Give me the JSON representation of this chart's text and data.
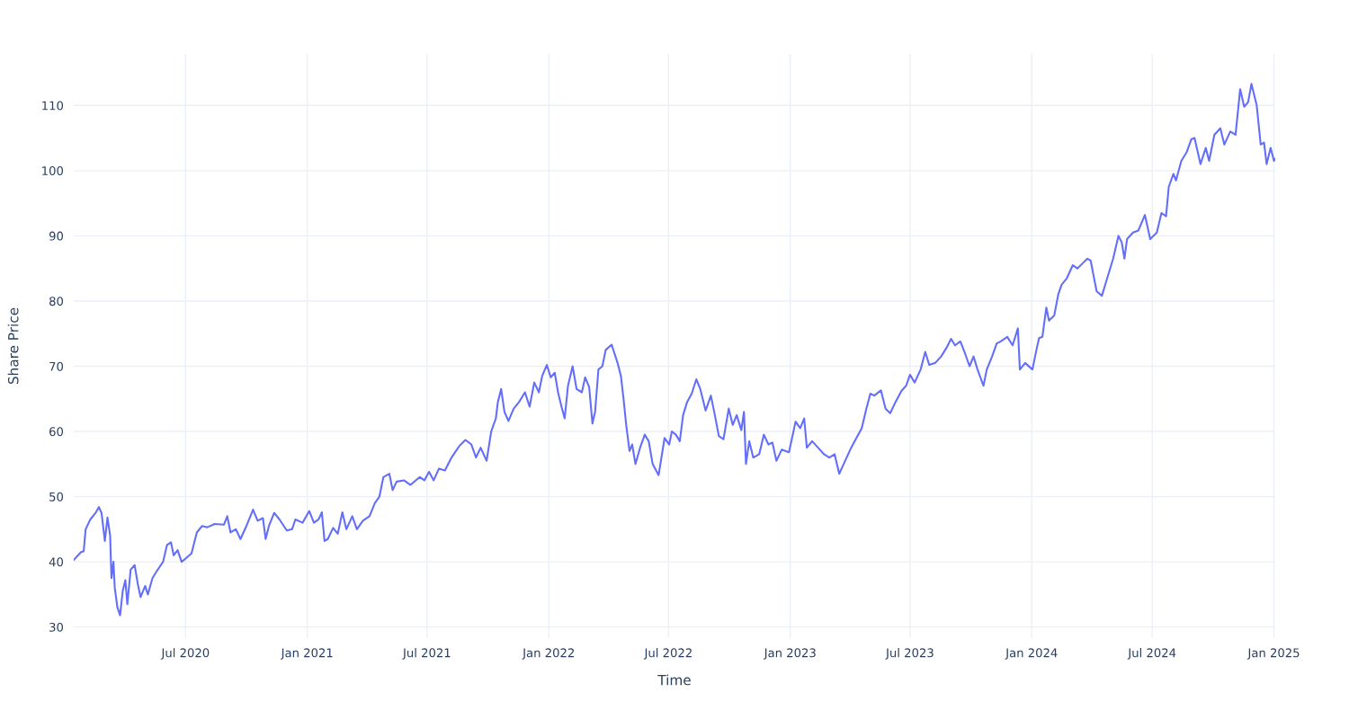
{
  "chart_data": {
    "type": "line",
    "xlabel": "Time",
    "ylabel": "Share Price",
    "x": [
      "2020-01-14",
      "2020-01-25",
      "2020-01-29",
      "2020-02-01",
      "2020-02-08",
      "2020-02-16",
      "2020-02-21",
      "2020-02-25",
      "2020-03-01",
      "2020-03-05",
      "2020-03-09",
      "2020-03-11",
      "2020-03-14",
      "2020-03-16",
      "2020-03-20",
      "2020-03-24",
      "2020-03-28",
      "2020-04-01",
      "2020-04-04",
      "2020-04-09",
      "2020-04-15",
      "2020-04-20",
      "2020-04-24",
      "2020-05-01",
      "2020-05-05",
      "2020-05-12",
      "2020-05-18",
      "2020-05-28",
      "2020-06-03",
      "2020-06-09",
      "2020-06-13",
      "2020-06-19",
      "2020-06-25",
      "2020-07-01",
      "2020-07-10",
      "2020-07-18",
      "2020-07-26",
      "2020-08-03",
      "2020-08-14",
      "2020-08-28",
      "2020-09-02",
      "2020-09-07",
      "2020-09-15",
      "2020-09-22",
      "2020-10-01",
      "2020-10-11",
      "2020-10-18",
      "2020-10-26",
      "2020-10-30",
      "2020-11-04",
      "2020-11-12",
      "2020-11-20",
      "2020-12-01",
      "2020-12-09",
      "2020-12-14",
      "2020-12-25",
      "2021-01-04",
      "2021-01-11",
      "2021-01-18",
      "2021-01-23",
      "2021-01-27",
      "2021-02-01",
      "2021-02-09",
      "2021-02-16",
      "2021-02-23",
      "2021-03-01",
      "2021-03-10",
      "2021-03-17",
      "2021-03-26",
      "2021-04-05",
      "2021-04-13",
      "2021-04-20",
      "2021-04-26",
      "2021-05-05",
      "2021-05-10",
      "2021-05-16",
      "2021-05-27",
      "2021-06-06",
      "2021-06-20",
      "2021-06-27",
      "2021-07-04",
      "2021-07-11",
      "2021-07-19",
      "2021-07-28",
      "2021-08-07",
      "2021-08-19",
      "2021-08-28",
      "2021-09-06",
      "2021-09-13",
      "2021-09-20",
      "2021-09-29",
      "2021-10-06",
      "2021-10-13",
      "2021-10-16",
      "2021-10-21",
      "2021-10-26",
      "2021-11-01",
      "2021-11-09",
      "2021-11-17",
      "2021-11-26",
      "2021-12-03",
      "2021-12-10",
      "2021-12-17",
      "2021-12-22",
      "2021-12-29",
      "2022-01-04",
      "2022-01-10",
      "2022-01-15",
      "2022-01-21",
      "2022-01-25",
      "2022-01-30",
      "2022-02-06",
      "2022-02-12",
      "2022-02-20",
      "2022-02-25",
      "2022-03-03",
      "2022-03-08",
      "2022-03-12",
      "2022-03-17",
      "2022-03-23",
      "2022-03-28",
      "2022-04-06",
      "2022-04-15",
      "2022-04-20",
      "2022-04-24",
      "2022-04-28",
      "2022-05-03",
      "2022-05-07",
      "2022-05-12",
      "2022-05-19",
      "2022-05-26",
      "2022-06-01",
      "2022-06-07",
      "2022-06-16",
      "2022-06-25",
      "2022-07-02",
      "2022-07-06",
      "2022-07-12",
      "2022-07-18",
      "2022-07-23",
      "2022-07-29",
      "2022-08-05",
      "2022-08-12",
      "2022-08-18",
      "2022-08-26",
      "2022-09-03",
      "2022-09-09",
      "2022-09-15",
      "2022-09-22",
      "2022-09-30",
      "2022-10-06",
      "2022-10-12",
      "2022-10-19",
      "2022-10-23",
      "2022-10-26",
      "2022-10-31",
      "2022-11-06",
      "2022-11-15",
      "2022-11-22",
      "2022-11-29",
      "2022-12-05",
      "2022-12-11",
      "2022-12-19",
      "2022-12-30",
      "2023-01-09",
      "2023-01-16",
      "2023-01-22",
      "2023-01-26",
      "2023-02-03",
      "2023-02-12",
      "2023-02-21",
      "2023-03-01",
      "2023-03-09",
      "2023-03-16",
      "2023-03-25",
      "2023-04-03",
      "2023-04-11",
      "2023-04-19",
      "2023-04-26",
      "2023-05-02",
      "2023-05-08",
      "2023-05-18",
      "2023-05-25",
      "2023-06-01",
      "2023-06-09",
      "2023-06-18",
      "2023-06-25",
      "2023-07-01",
      "2023-07-08",
      "2023-07-17",
      "2023-07-24",
      "2023-07-30",
      "2023-08-08",
      "2023-08-17",
      "2023-08-25",
      "2023-09-01",
      "2023-09-07",
      "2023-09-15",
      "2023-09-22",
      "2023-09-29",
      "2023-10-05",
      "2023-10-11",
      "2023-10-20",
      "2023-10-25",
      "2023-11-02",
      "2023-11-09",
      "2023-11-15",
      "2023-11-25",
      "2023-12-03",
      "2023-12-11",
      "2023-12-14",
      "2023-12-22",
      "2024-01-02",
      "2024-01-08",
      "2024-01-12",
      "2024-01-17",
      "2024-01-23",
      "2024-01-27",
      "2024-02-04",
      "2024-02-10",
      "2024-02-15",
      "2024-02-23",
      "2024-03-03",
      "2024-03-10",
      "2024-03-18",
      "2024-03-25",
      "2024-03-30",
      "2024-04-08",
      "2024-04-16",
      "2024-04-24",
      "2024-05-03",
      "2024-05-11",
      "2024-05-16",
      "2024-05-20",
      "2024-05-24",
      "2024-06-02",
      "2024-06-10",
      "2024-06-20",
      "2024-06-28",
      "2024-07-08",
      "2024-07-15",
      "2024-07-22",
      "2024-07-26",
      "2024-08-02",
      "2024-08-06",
      "2024-08-14",
      "2024-08-22",
      "2024-08-29",
      "2024-09-03",
      "2024-09-12",
      "2024-09-20",
      "2024-09-25",
      "2024-10-03",
      "2024-10-12",
      "2024-10-18",
      "2024-10-27",
      "2024-11-04",
      "2024-11-11",
      "2024-11-17",
      "2024-11-23",
      "2024-11-28",
      "2024-12-06",
      "2024-12-12",
      "2024-12-17",
      "2024-12-21",
      "2024-12-27",
      "2025-01-01",
      "2025-01-03"
    ],
    "series": [
      {
        "color": "#636efa",
        "values": [
          40.3,
          41.5,
          41.6,
          45.0,
          46.5,
          47.5,
          48.4,
          47.5,
          43.2,
          46.8,
          44.0,
          37.5,
          40.0,
          36.0,
          33.0,
          31.8,
          35.5,
          37.2,
          33.5,
          38.8,
          39.5,
          36.5,
          34.6,
          36.3,
          35.0,
          37.5,
          38.5,
          40.0,
          42.6,
          43.0,
          41.0,
          41.8,
          40.0,
          40.5,
          41.3,
          44.5,
          45.5,
          45.3,
          45.8,
          45.7,
          47.0,
          44.5,
          45.0,
          43.5,
          45.5,
          48.0,
          46.3,
          46.7,
          43.5,
          45.5,
          47.5,
          46.5,
          44.8,
          45.0,
          46.5,
          46.0,
          47.8,
          46.0,
          46.5,
          47.6,
          43.2,
          43.5,
          45.2,
          44.3,
          47.6,
          45.0,
          47.0,
          45.0,
          46.3,
          47.0,
          49.0,
          50.0,
          53.0,
          53.5,
          51.0,
          52.3,
          52.5,
          51.8,
          53.0,
          52.5,
          53.8,
          52.5,
          54.3,
          54.0,
          56.0,
          57.8,
          58.7,
          58.0,
          56.0,
          57.5,
          55.5,
          60.0,
          62.0,
          64.5,
          66.5,
          63.0,
          61.6,
          63.5,
          64.5,
          66.0,
          63.8,
          67.5,
          66.0,
          68.5,
          70.2,
          68.3,
          69.0,
          66.0,
          63.5,
          62.0,
          67.0,
          70.0,
          66.5,
          66.0,
          68.3,
          66.8,
          61.2,
          63.0,
          69.5,
          70.0,
          72.5,
          73.3,
          70.5,
          68.5,
          65.0,
          61.0,
          57.0,
          58.0,
          55.0,
          57.5,
          59.5,
          58.5,
          55.0,
          53.3,
          59.0,
          58.0,
          60.0,
          59.5,
          58.5,
          62.5,
          64.5,
          65.8,
          68.0,
          66.5,
          63.2,
          65.5,
          62.5,
          59.3,
          58.8,
          63.5,
          61.0,
          62.5,
          60.2,
          63.0,
          55.0,
          58.5,
          56.0,
          56.5,
          59.5,
          58.0,
          58.3,
          55.5,
          57.2,
          56.8,
          61.5,
          60.5,
          62.0,
          57.5,
          58.5,
          57.5,
          56.5,
          56.0,
          56.5,
          53.5,
          55.5,
          57.5,
          59.0,
          60.5,
          63.5,
          65.8,
          65.5,
          66.3,
          63.5,
          62.8,
          64.5,
          66.2,
          67.0,
          68.7,
          67.5,
          69.5,
          72.2,
          70.2,
          70.5,
          71.5,
          72.8,
          74.2,
          73.2,
          73.8,
          72.0,
          70.0,
          71.5,
          69.5,
          67.0,
          69.5,
          71.5,
          73.5,
          73.8,
          74.5,
          73.2,
          75.8,
          69.5,
          70.5,
          69.5,
          72.5,
          74.3,
          74.5,
          79.0,
          77.0,
          77.8,
          81.0,
          82.5,
          83.5,
          85.5,
          85.0,
          85.8,
          86.5,
          86.2,
          81.5,
          80.8,
          83.5,
          86.5,
          90.0,
          89.0,
          86.5,
          89.5,
          90.5,
          90.8,
          93.2,
          89.5,
          90.5,
          93.5,
          93.0,
          97.5,
          99.5,
          98.5,
          101.5,
          102.8,
          104.8,
          105.0,
          101.0,
          103.5,
          101.5,
          105.5,
          106.5,
          104.0,
          106.0,
          105.5,
          112.5,
          109.8,
          110.5,
          113.3,
          110.0,
          104.0,
          104.3,
          101.0,
          103.5,
          101.5,
          101.8
        ]
      }
    ],
    "xlim": [
      "2020-01-14",
      "2025-01-03"
    ],
    "xticks": [
      {
        "value": "2020-07-01",
        "label": "Jul 2020"
      },
      {
        "value": "2021-01-01",
        "label": "Jan 2021"
      },
      {
        "value": "2021-07-01",
        "label": "Jul 2021"
      },
      {
        "value": "2022-01-01",
        "label": "Jan 2022"
      },
      {
        "value": "2022-07-01",
        "label": "Jul 2022"
      },
      {
        "value": "2023-01-01",
        "label": "Jan 2023"
      },
      {
        "value": "2023-07-01",
        "label": "Jul 2023"
      },
      {
        "value": "2024-01-01",
        "label": "Jan 2024"
      },
      {
        "value": "2024-07-01",
        "label": "Jul 2024"
      },
      {
        "value": "2025-01-01",
        "label": "Jan 2025"
      }
    ],
    "ylim": [
      28.3,
      117.9
    ],
    "yticks": [
      30,
      40,
      50,
      60,
      70,
      80,
      90,
      100,
      110
    ],
    "grid": true,
    "legend": false
  }
}
